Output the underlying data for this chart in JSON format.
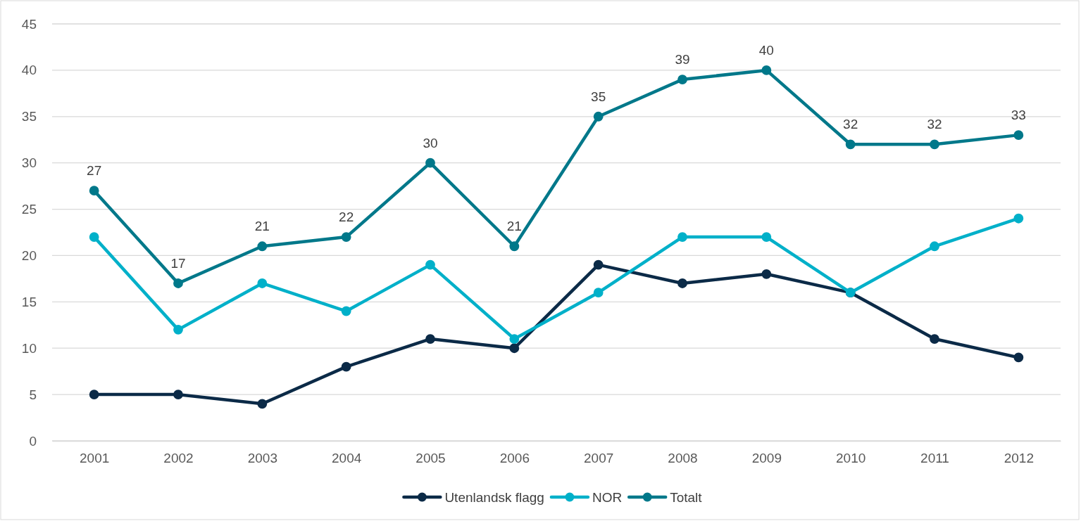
{
  "chart_data": {
    "type": "line",
    "categories": [
      "2001",
      "2002",
      "2003",
      "2004",
      "2005",
      "2006",
      "2007",
      "2008",
      "2009",
      "2010",
      "2011",
      "2012"
    ],
    "series": [
      {
        "name": "Utenlandsk flagg",
        "color": "#0b2a47",
        "values": [
          5,
          5,
          4,
          8,
          11,
          10,
          19,
          17,
          18,
          16,
          11,
          9
        ]
      },
      {
        "name": "NOR",
        "color": "#00b0c9",
        "values": [
          22,
          12,
          17,
          14,
          19,
          11,
          16,
          22,
          22,
          16,
          21,
          24
        ]
      },
      {
        "name": "Totalt",
        "color": "#00788a",
        "values": [
          27,
          17,
          21,
          22,
          30,
          21,
          35,
          39,
          40,
          32,
          32,
          33
        ],
        "value_labels": [
          "27",
          "17",
          "21",
          "22",
          "30",
          "21",
          "35",
          "39",
          "40",
          "32",
          "32",
          "33"
        ]
      }
    ],
    "ylim": [
      0,
      45
    ],
    "yticks": [
      0,
      5,
      10,
      15,
      20,
      25,
      30,
      35,
      40,
      45
    ],
    "grid": "y",
    "legend": "bottom",
    "marker": "circle",
    "line_style": "solid"
  }
}
